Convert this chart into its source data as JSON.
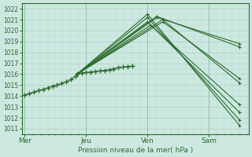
{
  "bg_color": "#cce8e0",
  "grid_color_major": "#aacfc8",
  "grid_color_minor": "#bbddd6",
  "line_color": "#2d6b2d",
  "ylabel_text": "Pression niveau de la mer( hPa )",
  "xtick_labels": [
    "Mer",
    "Jeu",
    "Ven",
    "Sam"
  ],
  "xtick_positions": [
    0,
    2,
    4,
    6
  ],
  "ylim": [
    1010.5,
    1022.5
  ],
  "xlim": [
    -0.1,
    7.3
  ],
  "yticks": [
    1011,
    1012,
    1013,
    1014,
    1015,
    1016,
    1017,
    1018,
    1019,
    1020,
    1021,
    1022
  ],
  "lines": [
    {
      "x": [
        1.7,
        4.0,
        7.0
      ],
      "y": [
        1016.0,
        1021.5,
        1011.3
      ]
    },
    {
      "x": [
        1.7,
        4.0,
        7.0
      ],
      "y": [
        1016.0,
        1021.2,
        1011.8
      ]
    },
    {
      "x": [
        1.7,
        4.0,
        7.0
      ],
      "y": [
        1016.0,
        1020.8,
        1012.5
      ]
    },
    {
      "x": [
        1.7,
        4.1,
        7.0
      ],
      "y": [
        1016.0,
        1020.5,
        1013.2
      ]
    },
    {
      "x": [
        1.7,
        4.5,
        7.0
      ],
      "y": [
        1016.0,
        1021.0,
        1015.2
      ]
    },
    {
      "x": [
        1.7,
        4.5,
        7.0
      ],
      "y": [
        1016.0,
        1020.8,
        1015.6
      ]
    },
    {
      "x": [
        1.7,
        4.3,
        7.0
      ],
      "y": [
        1016.0,
        1021.3,
        1018.5
      ]
    },
    {
      "x": [
        1.7,
        4.3,
        7.0
      ],
      "y": [
        1016.0,
        1021.2,
        1018.8
      ]
    }
  ],
  "obs_points_x": [
    0.0,
    0.15,
    0.3,
    0.45,
    0.6,
    0.75,
    0.9,
    1.05,
    1.2,
    1.35,
    1.5,
    1.65,
    1.7,
    1.85,
    2.0,
    2.15,
    2.3,
    2.45,
    2.6,
    2.75,
    2.9,
    3.05,
    3.2,
    3.35,
    3.5
  ],
  "obs_points_y": [
    1014.1,
    1014.2,
    1014.35,
    1014.5,
    1014.6,
    1014.75,
    1014.9,
    1015.0,
    1015.15,
    1015.3,
    1015.5,
    1015.8,
    1016.0,
    1016.1,
    1016.15,
    1016.2,
    1016.25,
    1016.3,
    1016.35,
    1016.4,
    1016.5,
    1016.6,
    1016.65,
    1016.7,
    1016.75
  ],
  "vline_positions": [
    0,
    2,
    4,
    6
  ]
}
